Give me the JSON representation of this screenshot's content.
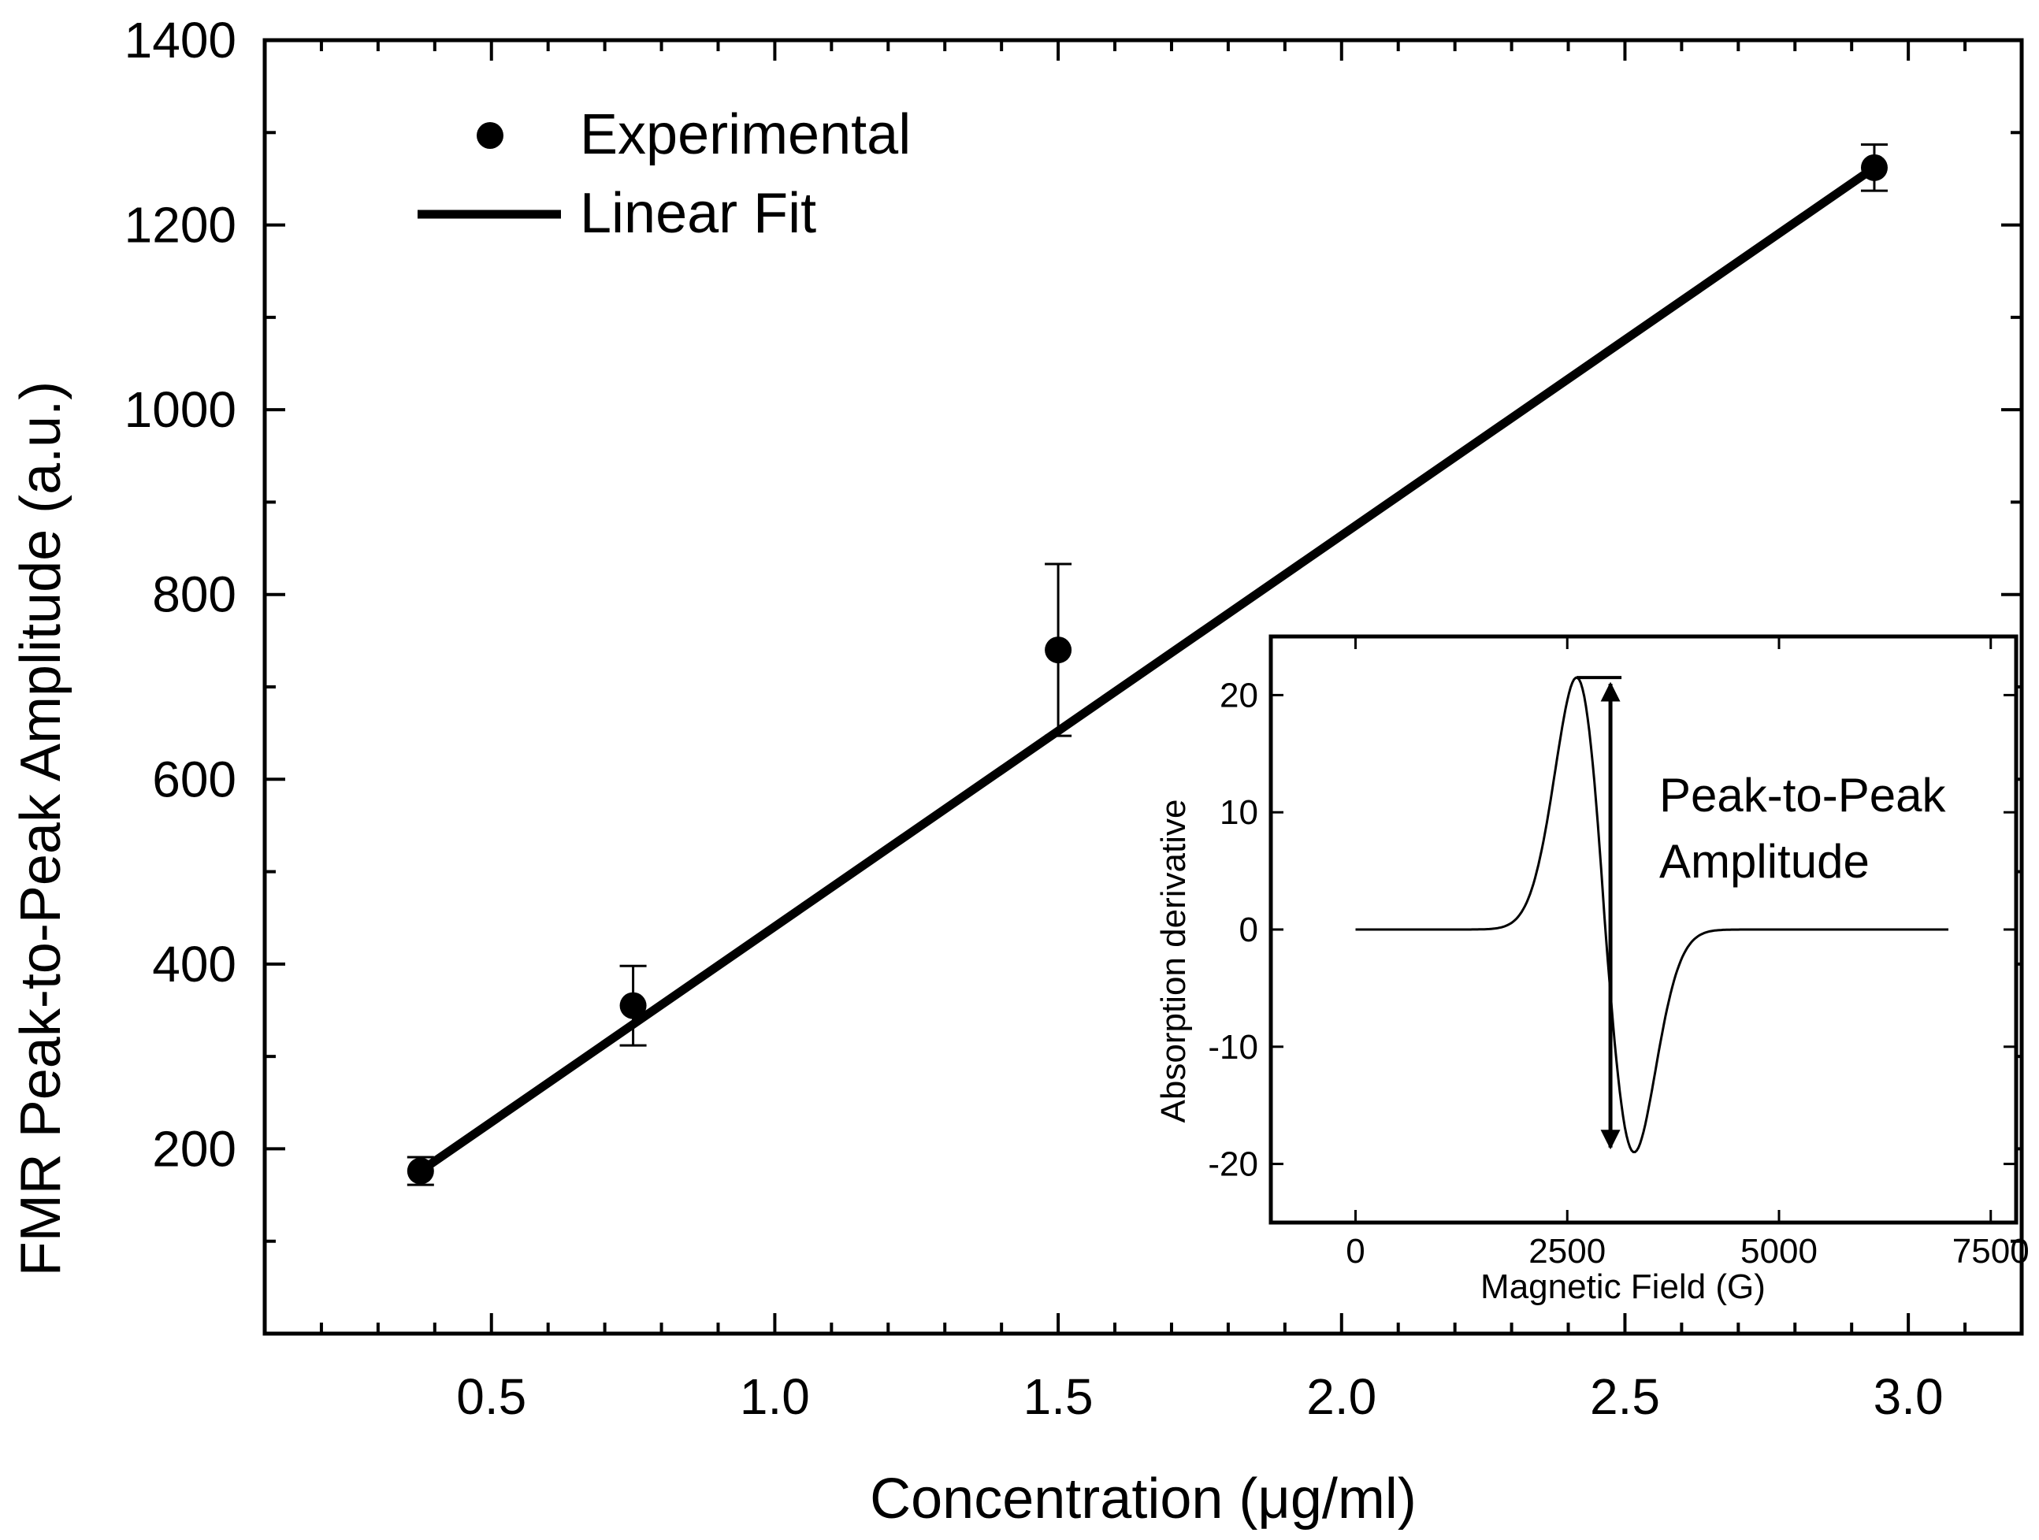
{
  "colors": {
    "ink": "#000000",
    "background": "#ffffff"
  },
  "chart_data": [
    {
      "type": "scatter",
      "xlabel": "Concentration (μg/ml)",
      "ylabel": "FMR Peak-to-Peak Amplitude (a.u.)",
      "xlim": [
        0.1,
        3.2
      ],
      "ylim": [
        0,
        1400
      ],
      "xticks": [
        0.5,
        1.0,
        1.5,
        2.0,
        2.5,
        3.0
      ],
      "xtick_labels": [
        "0.5",
        "1.0",
        "1.5",
        "2.0",
        "2.5",
        "3.0"
      ],
      "yticks": [
        200,
        400,
        600,
        800,
        1000,
        1200,
        1400
      ],
      "ytick_labels": [
        "200",
        "400",
        "600",
        "800",
        "1000",
        "1200",
        "1400"
      ],
      "legend": {
        "position": "top-left",
        "entries": [
          "Experimental",
          "Linear Fit"
        ]
      },
      "series": [
        {
          "name": "Experimental",
          "x": [
            0.375,
            0.75,
            1.5,
            2.94
          ],
          "y": [
            176,
            355,
            740,
            1262
          ],
          "yerr": [
            15,
            43,
            93,
            25
          ]
        },
        {
          "name": "Linear Fit",
          "x": [
            0.375,
            2.94
          ],
          "y": [
            176,
            1262
          ]
        }
      ]
    },
    {
      "type": "line",
      "role": "inset",
      "xlabel": "Magnetic Field (G)",
      "ylabel": "Absorption derivative",
      "xlim": [
        -1000,
        7800
      ],
      "ylim": [
        -25,
        25
      ],
      "xticks": [
        0,
        2500,
        5000,
        7500
      ],
      "xtick_labels": [
        "0",
        "2500",
        "5000",
        "7500"
      ],
      "yticks": [
        -20,
        -10,
        0,
        10,
        20
      ],
      "ytick_labels": [
        "-20",
        "-10",
        "0",
        "10",
        "20"
      ],
      "signal": {
        "center_field": 2950,
        "half_width": 340,
        "peak": 21.5,
        "field_range": [
          0,
          7000
        ]
      },
      "annotation": {
        "line1": "Peak-to-Peak",
        "line2": "Amplitude",
        "arrow_from_y": 21.5,
        "arrow_to_y": -19
      }
    }
  ]
}
